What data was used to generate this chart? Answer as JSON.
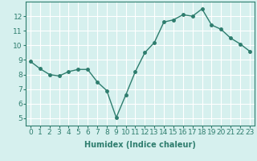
{
  "x": [
    0,
    1,
    2,
    3,
    4,
    5,
    6,
    7,
    8,
    9,
    10,
    11,
    12,
    13,
    14,
    15,
    16,
    17,
    18,
    19,
    20,
    21,
    22,
    23
  ],
  "y": [
    8.9,
    8.4,
    8.0,
    7.9,
    8.2,
    8.35,
    8.35,
    7.5,
    6.9,
    5.05,
    6.6,
    8.2,
    9.5,
    10.2,
    11.6,
    11.75,
    12.1,
    12.0,
    12.5,
    11.4,
    11.1,
    10.5,
    10.1,
    9.6
  ],
  "line_color": "#2e7d6e",
  "marker": "o",
  "markersize": 2.5,
  "linewidth": 1.0,
  "xlabel": "Humidex (Indice chaleur)",
  "xlim": [
    -0.5,
    23.5
  ],
  "ylim": [
    4.5,
    13.0
  ],
  "xticks": [
    0,
    1,
    2,
    3,
    4,
    5,
    6,
    7,
    8,
    9,
    10,
    11,
    12,
    13,
    14,
    15,
    16,
    17,
    18,
    19,
    20,
    21,
    22,
    23
  ],
  "yticks": [
    5,
    6,
    7,
    8,
    9,
    10,
    11,
    12
  ],
  "bg_color": "#d6f0ee",
  "grid_color": "#ffffff",
  "xlabel_fontsize": 7,
  "tick_fontsize": 6.5,
  "spine_color": "#2e7d6e"
}
